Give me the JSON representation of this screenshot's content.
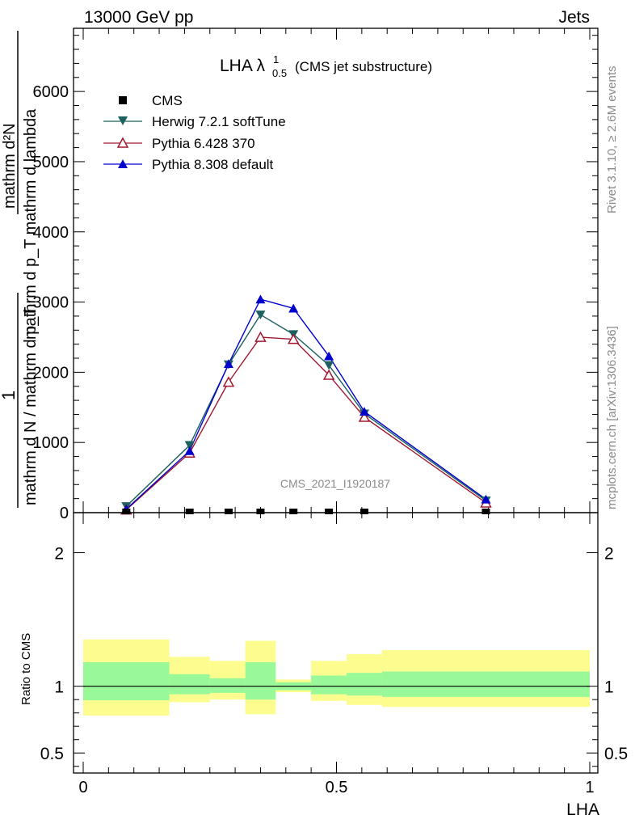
{
  "header": {
    "left": "13000 GeV pp",
    "right": "Jets"
  },
  "side_labels": {
    "rivet": "Rivet 3.1.10, ≥ 2.6M events",
    "mcplots": "mcplots.cern.ch [arXiv:1306.3436]"
  },
  "watermark": "CMS_2021_I1920187",
  "chart_data": {
    "type": "line",
    "title": {
      "main": "LHA λ",
      "sup": "1",
      "sub": "0.5",
      "note": "(CMS jet substructure)"
    },
    "ylabel": {
      "numer": "mathrm d²N",
      "denom": "mathrm d p_T mathrm d lambda",
      "prefix_numer": "1",
      "prefix_denom": "mathrm d N / mathrm d p_T"
    },
    "xlabel": "LHA",
    "xlim": [
      0,
      1
    ],
    "ylim": [
      0,
      6900
    ],
    "x_tick_labels": [
      "0",
      "0.5",
      "1"
    ],
    "y_tick_labels": [
      "0",
      "1000",
      "2000",
      "3000",
      "4000",
      "5000",
      "6000"
    ],
    "x": [
      0.085,
      0.21,
      0.287,
      0.35,
      0.415,
      0.485,
      0.555,
      0.795
    ],
    "cms": {
      "name": "CMS",
      "color": "#000000",
      "values": [
        0,
        0,
        0,
        0,
        0,
        0,
        0,
        0
      ]
    },
    "series": [
      {
        "name": "Herwig 7.2.1 softTune",
        "color": "#1d6060",
        "marker": "triangle-down",
        "values": [
          90,
          960,
          2110,
          2820,
          2540,
          2100,
          1410,
          170
        ]
      },
      {
        "name": "Pythia 6.428 370",
        "color": "#a01830",
        "marker": "triangle-open",
        "values": [
          40,
          850,
          1860,
          2500,
          2470,
          1960,
          1360,
          140
        ]
      },
      {
        "name": "Pythia 8.308 default",
        "color": "#0000cc",
        "marker": "triangle-up",
        "values": [
          50,
          880,
          2120,
          3040,
          2910,
          2230,
          1440,
          190
        ]
      }
    ],
    "ratio": {
      "ylabel": "Ratio to CMS",
      "ylim": [
        0.35,
        2.3
      ],
      "y_tick_labels": [
        "0.5",
        "1",
        "2"
      ],
      "bands": [
        {
          "x0": 0.0,
          "x1": 0.17,
          "inner": [
            0.895,
            1.18
          ],
          "outer": [
            0.78,
            1.35
          ]
        },
        {
          "x0": 0.17,
          "x1": 0.25,
          "inner": [
            0.94,
            1.09
          ],
          "outer": [
            0.88,
            1.22
          ]
        },
        {
          "x0": 0.25,
          "x1": 0.32,
          "inner": [
            0.95,
            1.06
          ],
          "outer": [
            0.9,
            1.19
          ]
        },
        {
          "x0": 0.32,
          "x1": 0.38,
          "inner": [
            0.9,
            1.18
          ],
          "outer": [
            0.79,
            1.34
          ]
        },
        {
          "x0": 0.38,
          "x1": 0.45,
          "inner": [
            0.97,
            1.03
          ],
          "outer": [
            0.955,
            1.05
          ]
        },
        {
          "x0": 0.45,
          "x1": 0.52,
          "inner": [
            0.94,
            1.08
          ],
          "outer": [
            0.89,
            1.19
          ]
        },
        {
          "x0": 0.52,
          "x1": 0.59,
          "inner": [
            0.93,
            1.1
          ],
          "outer": [
            0.86,
            1.24
          ]
        },
        {
          "x0": 0.59,
          "x1": 1.0,
          "inner": [
            0.92,
            1.11
          ],
          "outer": [
            0.845,
            1.27
          ]
        }
      ],
      "inner_color": "#99f999",
      "outer_color": "#fdfd8f"
    }
  }
}
